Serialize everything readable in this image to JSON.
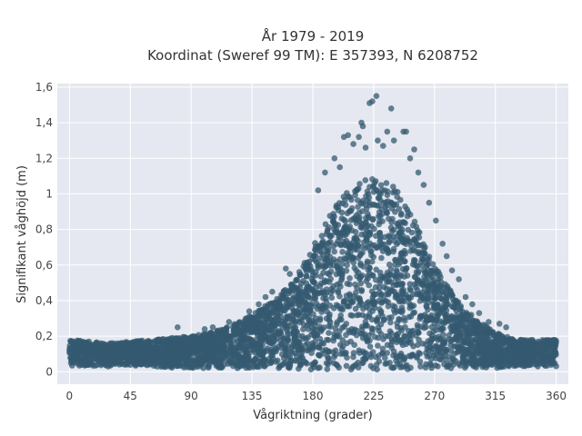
{
  "chart_data": {
    "type": "scatter",
    "title": "År 1979 - 2019",
    "subtitle": "Koordinat (Sweref 99 TM): E 357393, N 6208752",
    "xlabel": "Vågriktning (grader)",
    "ylabel": "Signifikant våghöjd (m)",
    "xlim": [
      -9,
      369
    ],
    "ylim": [
      -0.07,
      1.62
    ],
    "x_ticks": [
      0,
      45,
      90,
      135,
      180,
      225,
      270,
      315,
      360
    ],
    "x_tick_labels": [
      "0",
      "45",
      "90",
      "135",
      "180",
      "225",
      "270",
      "315",
      "360"
    ],
    "y_ticks": [
      0,
      0.2,
      0.4,
      0.6,
      0.8,
      1.0,
      1.2,
      1.4,
      1.6
    ],
    "y_tick_labels": [
      "0",
      "0,2",
      "0,4",
      "0,6",
      "0,8",
      "1",
      "1,2",
      "1,4",
      "1,6"
    ],
    "grid": true,
    "legend": "none",
    "marker_color": "#345a70",
    "envelope": {
      "x": [
        0,
        15,
        30,
        45,
        60,
        75,
        90,
        105,
        120,
        135,
        150,
        165,
        180,
        195,
        210,
        225,
        240,
        255,
        270,
        285,
        300,
        315,
        330,
        345,
        360
      ],
      "y_max": [
        0.18,
        0.17,
        0.16,
        0.17,
        0.18,
        0.19,
        0.2,
        0.22,
        0.26,
        0.32,
        0.4,
        0.5,
        0.7,
        0.92,
        1.05,
        1.1,
        1.05,
        0.85,
        0.6,
        0.42,
        0.3,
        0.22,
        0.18,
        0.18,
        0.18
      ],
      "y_min": [
        0.03,
        0.03,
        0.03,
        0.03,
        0.03,
        0.02,
        0.02,
        0.02,
        0.02,
        0.02,
        0.02,
        0.02,
        0.01,
        0.01,
        0.01,
        0.01,
        0.01,
        0.01,
        0.02,
        0.02,
        0.02,
        0.02,
        0.03,
        0.03,
        0.03
      ]
    },
    "outlier_points": [
      {
        "x": 222,
        "y": 1.51
      },
      {
        "x": 227,
        "y": 1.55
      },
      {
        "x": 224,
        "y": 1.52
      },
      {
        "x": 238,
        "y": 1.48
      },
      {
        "x": 216,
        "y": 1.4
      },
      {
        "x": 217,
        "y": 1.38
      },
      {
        "x": 235,
        "y": 1.35
      },
      {
        "x": 247,
        "y": 1.35
      },
      {
        "x": 249,
        "y": 1.35
      },
      {
        "x": 203,
        "y": 1.32
      },
      {
        "x": 206,
        "y": 1.33
      },
      {
        "x": 228,
        "y": 1.3
      },
      {
        "x": 214,
        "y": 1.32
      },
      {
        "x": 210,
        "y": 1.28
      },
      {
        "x": 240,
        "y": 1.3
      },
      {
        "x": 232,
        "y": 1.27
      },
      {
        "x": 255,
        "y": 1.25
      },
      {
        "x": 219,
        "y": 1.26
      },
      {
        "x": 196,
        "y": 1.2
      },
      {
        "x": 252,
        "y": 1.2
      },
      {
        "x": 200,
        "y": 1.15
      },
      {
        "x": 189,
        "y": 1.12
      },
      {
        "x": 258,
        "y": 1.12
      },
      {
        "x": 262,
        "y": 1.05
      },
      {
        "x": 184,
        "y": 1.02
      },
      {
        "x": 266,
        "y": 0.95
      },
      {
        "x": 271,
        "y": 0.85
      },
      {
        "x": 276,
        "y": 0.72
      },
      {
        "x": 279,
        "y": 0.65
      },
      {
        "x": 283,
        "y": 0.57
      },
      {
        "x": 288,
        "y": 0.52
      },
      {
        "x": 293,
        "y": 0.42
      },
      {
        "x": 298,
        "y": 0.38
      },
      {
        "x": 303,
        "y": 0.33
      },
      {
        "x": 310,
        "y": 0.28
      },
      {
        "x": 318,
        "y": 0.27
      },
      {
        "x": 323,
        "y": 0.25
      },
      {
        "x": 160,
        "y": 0.58
      },
      {
        "x": 163,
        "y": 0.55
      },
      {
        "x": 150,
        "y": 0.45
      },
      {
        "x": 145,
        "y": 0.42
      },
      {
        "x": 140,
        "y": 0.38
      },
      {
        "x": 133,
        "y": 0.34
      },
      {
        "x": 118,
        "y": 0.28
      },
      {
        "x": 106,
        "y": 0.25
      },
      {
        "x": 100,
        "y": 0.24
      },
      {
        "x": 80,
        "y": 0.25
      }
    ]
  }
}
